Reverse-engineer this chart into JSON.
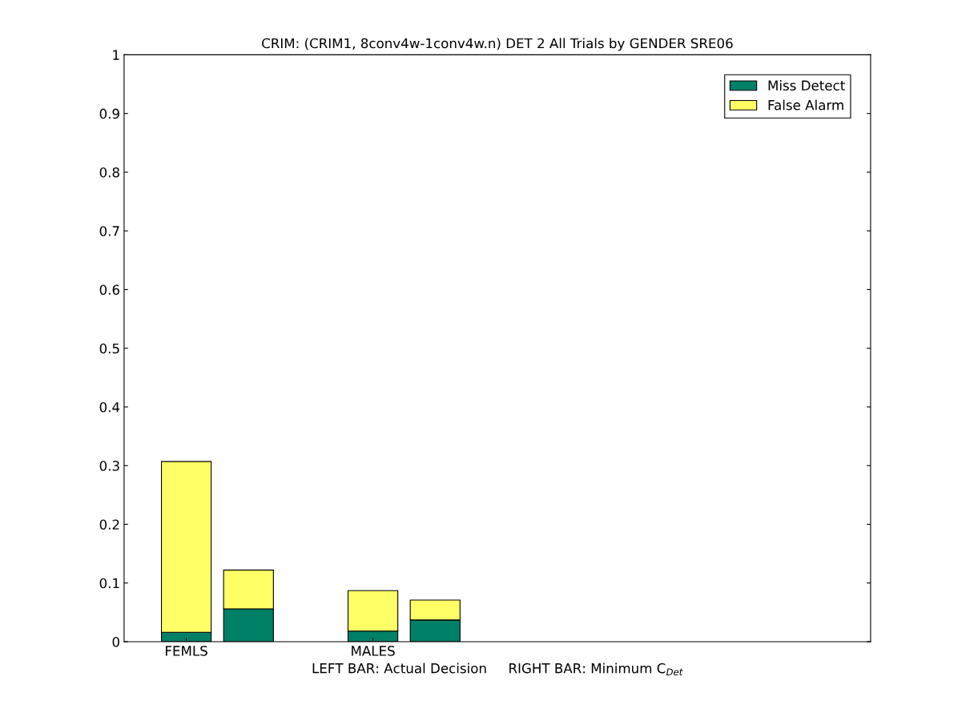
{
  "chart_data": {
    "type": "bar",
    "title": "CRIM: (CRIM1, 8conv4w-1conv4w.n) DET 2 All Trials by GENDER SRE06",
    "xlabel": "LEFT BAR: Actual Decision     RIGHT BAR: Minimum C$_{Det}$",
    "categories": [
      "FEMLS",
      null,
      null,
      "MALES",
      null,
      null,
      null,
      null,
      null,
      null,
      null
    ],
    "stacked": true,
    "series": [
      {
        "name": "Miss Detect",
        "color": "#008066",
        "values": [
          0.016,
          0.056,
          null,
          0.018,
          0.037,
          null,
          null,
          null,
          null,
          null,
          null
        ]
      },
      {
        "name": "False Alarm",
        "color": "#ffff66",
        "values": [
          0.291,
          0.066,
          null,
          0.069,
          0.034,
          null,
          null,
          null,
          null,
          null,
          null
        ]
      }
    ],
    "ylim": [
      0,
      1
    ],
    "yticks": [
      0,
      0.1,
      0.2,
      0.3,
      0.4,
      0.5,
      0.6,
      0.7,
      0.8,
      0.9,
      1
    ],
    "legend": "top right",
    "grid": false
  }
}
